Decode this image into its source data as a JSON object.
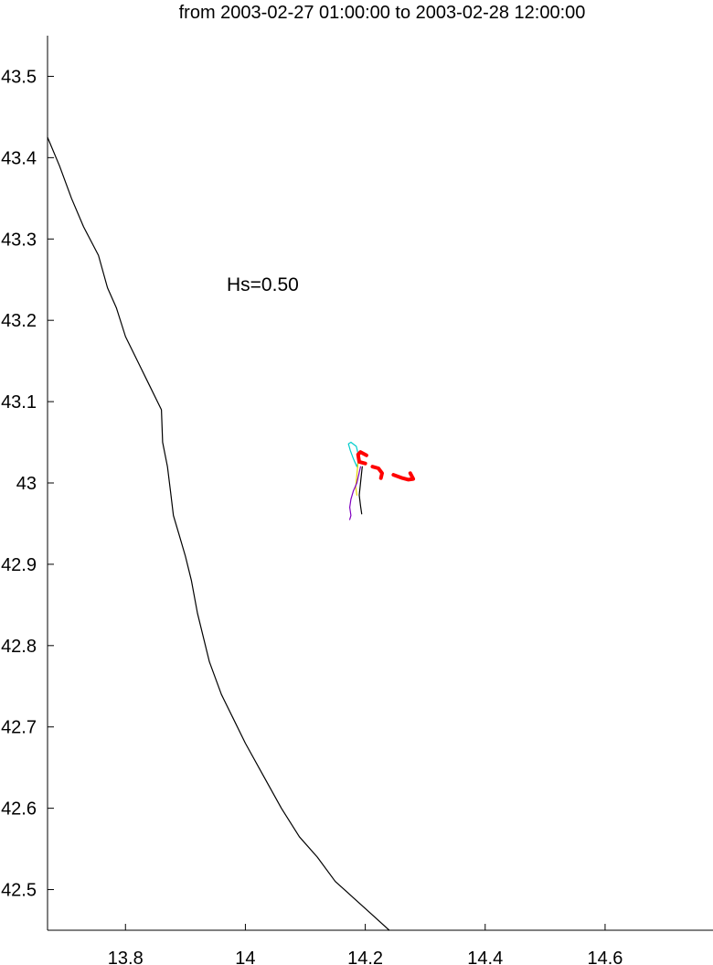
{
  "chart_data": {
    "type": "line",
    "title": "from 2003-02-27 01:00:00 to 2003-02-28 12:00:00",
    "xlabel": "",
    "ylabel": "",
    "xlim": [
      13.67,
      14.78
    ],
    "ylim": [
      42.45,
      43.55
    ],
    "x_ticks": [
      13.8,
      14,
      14.2,
      14.4,
      14.6
    ],
    "x_tick_labels": [
      "13.8",
      "14",
      "14.2",
      "14.4",
      "14.6"
    ],
    "y_ticks": [
      42.5,
      42.6,
      42.7,
      42.8,
      42.9,
      43,
      43.1,
      43.2,
      43.3,
      43.4,
      43.5
    ],
    "y_tick_labels": [
      "42.5",
      "42.6",
      "42.7",
      "42.8",
      "42.9",
      "43",
      "43.1",
      "43.2",
      "43.3",
      "43.4",
      "43.5"
    ],
    "grid": false,
    "annotation": "Hs=0.50",
    "series": [
      {
        "color": "#000000",
        "width": 1.2,
        "x": [
          13.67,
          13.69,
          13.71,
          13.73,
          13.755,
          13.77,
          13.785,
          13.8,
          13.82,
          13.84,
          13.86,
          13.862,
          13.87,
          13.875,
          13.88,
          13.89,
          13.9,
          13.91,
          13.92,
          13.94,
          13.96,
          13.98,
          14.0,
          14.03,
          14.06,
          14.09,
          14.12,
          14.15,
          14.18,
          14.21,
          14.24
        ],
        "y": [
          43.425,
          43.39,
          43.35,
          43.315,
          43.28,
          43.24,
          43.215,
          43.18,
          43.15,
          43.12,
          43.09,
          43.05,
          43.02,
          42.99,
          42.96,
          42.935,
          42.91,
          42.88,
          42.84,
          42.78,
          42.74,
          42.71,
          42.68,
          42.64,
          42.6,
          42.565,
          42.54,
          42.51,
          42.49,
          42.47,
          42.45
        ]
      },
      {
        "color": "#00cccc",
        "width": 1.2,
        "x": [
          14.18,
          14.175,
          14.172,
          14.176,
          14.185,
          14.19,
          14.186,
          14.18
        ],
        "y": [
          43.03,
          43.04,
          43.048,
          43.05,
          43.045,
          43.03,
          43.02,
          43.03
        ]
      },
      {
        "color": "#e6d200",
        "width": 1.2,
        "x": [
          14.188,
          14.186,
          14.184,
          14.186
        ],
        "y": [
          43.025,
          43.01,
          42.995,
          42.985
        ]
      },
      {
        "color": "#8000c0",
        "width": 1.2,
        "x": [
          14.192,
          14.186,
          14.18,
          14.176,
          14.174,
          14.176,
          14.174
        ],
        "y": [
          43.02,
          43.0,
          42.99,
          42.98,
          42.97,
          42.96,
          42.955
        ]
      },
      {
        "color": "#000000",
        "width": 1.2,
        "x": [
          14.195,
          14.192,
          14.19,
          14.192,
          14.194
        ],
        "y": [
          43.02,
          43.0,
          42.985,
          42.972,
          42.962
        ]
      },
      {
        "color": "#ff0000",
        "width": 4,
        "x": [
          14.2,
          14.19,
          14.188,
          14.192,
          14.202
        ],
        "y": [
          43.024,
          43.026,
          43.035,
          43.038,
          43.034
        ]
      },
      {
        "color": "#ff0000",
        "width": 4,
        "x": [
          14.212,
          14.222,
          14.228,
          14.226
        ],
        "y": [
          43.02,
          43.018,
          43.012,
          43.006
        ]
      },
      {
        "color": "#ff0000",
        "width": 4,
        "x": [
          14.247,
          14.262,
          14.272,
          14.28,
          14.275
        ],
        "y": [
          43.01,
          43.006,
          43.004,
          43.005,
          43.012
        ]
      }
    ]
  }
}
